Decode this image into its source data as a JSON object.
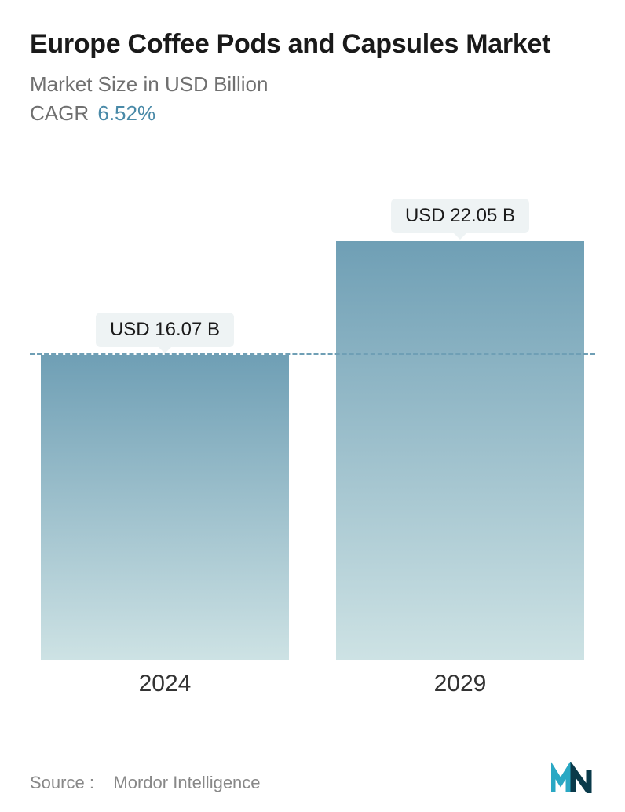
{
  "title": "Europe Coffee Pods and Capsules Market",
  "subtitle": "Market Size in USD Billion",
  "cagr_label": "CAGR",
  "cagr_value": "6.52%",
  "chart": {
    "type": "bar",
    "categories": [
      "2024",
      "2029"
    ],
    "values": [
      16.07,
      22.05
    ],
    "value_labels": [
      "USD 16.07 B",
      "USD 22.05 B"
    ],
    "y_max": 24,
    "bar_gradient_top": "#6f9fb5",
    "bar_gradient_bottom": "#cde2e4",
    "pill_bg": "#eef3f4",
    "pill_text_color": "#1a1a1a",
    "pill_fontsize": 24,
    "dashed_line_color": "#6f9fb5",
    "dashed_line_at_value": 16.07,
    "x_label_fontsize": 30,
    "x_label_color": "#333333",
    "background_color": "#ffffff",
    "bar_width_pct": 100
  },
  "colors": {
    "title": "#1a1a1a",
    "subtitle": "#707070",
    "cagr_value": "#4a8aa8",
    "source": "#888888",
    "logo_primary": "#2aa8c4",
    "logo_dark": "#0a3a4a"
  },
  "typography": {
    "title_fontsize": 34,
    "title_weight": 600,
    "subtitle_fontsize": 26,
    "cagr_fontsize": 26
  },
  "footer": {
    "source_label": "Source :",
    "source_name": "Mordor Intelligence"
  }
}
